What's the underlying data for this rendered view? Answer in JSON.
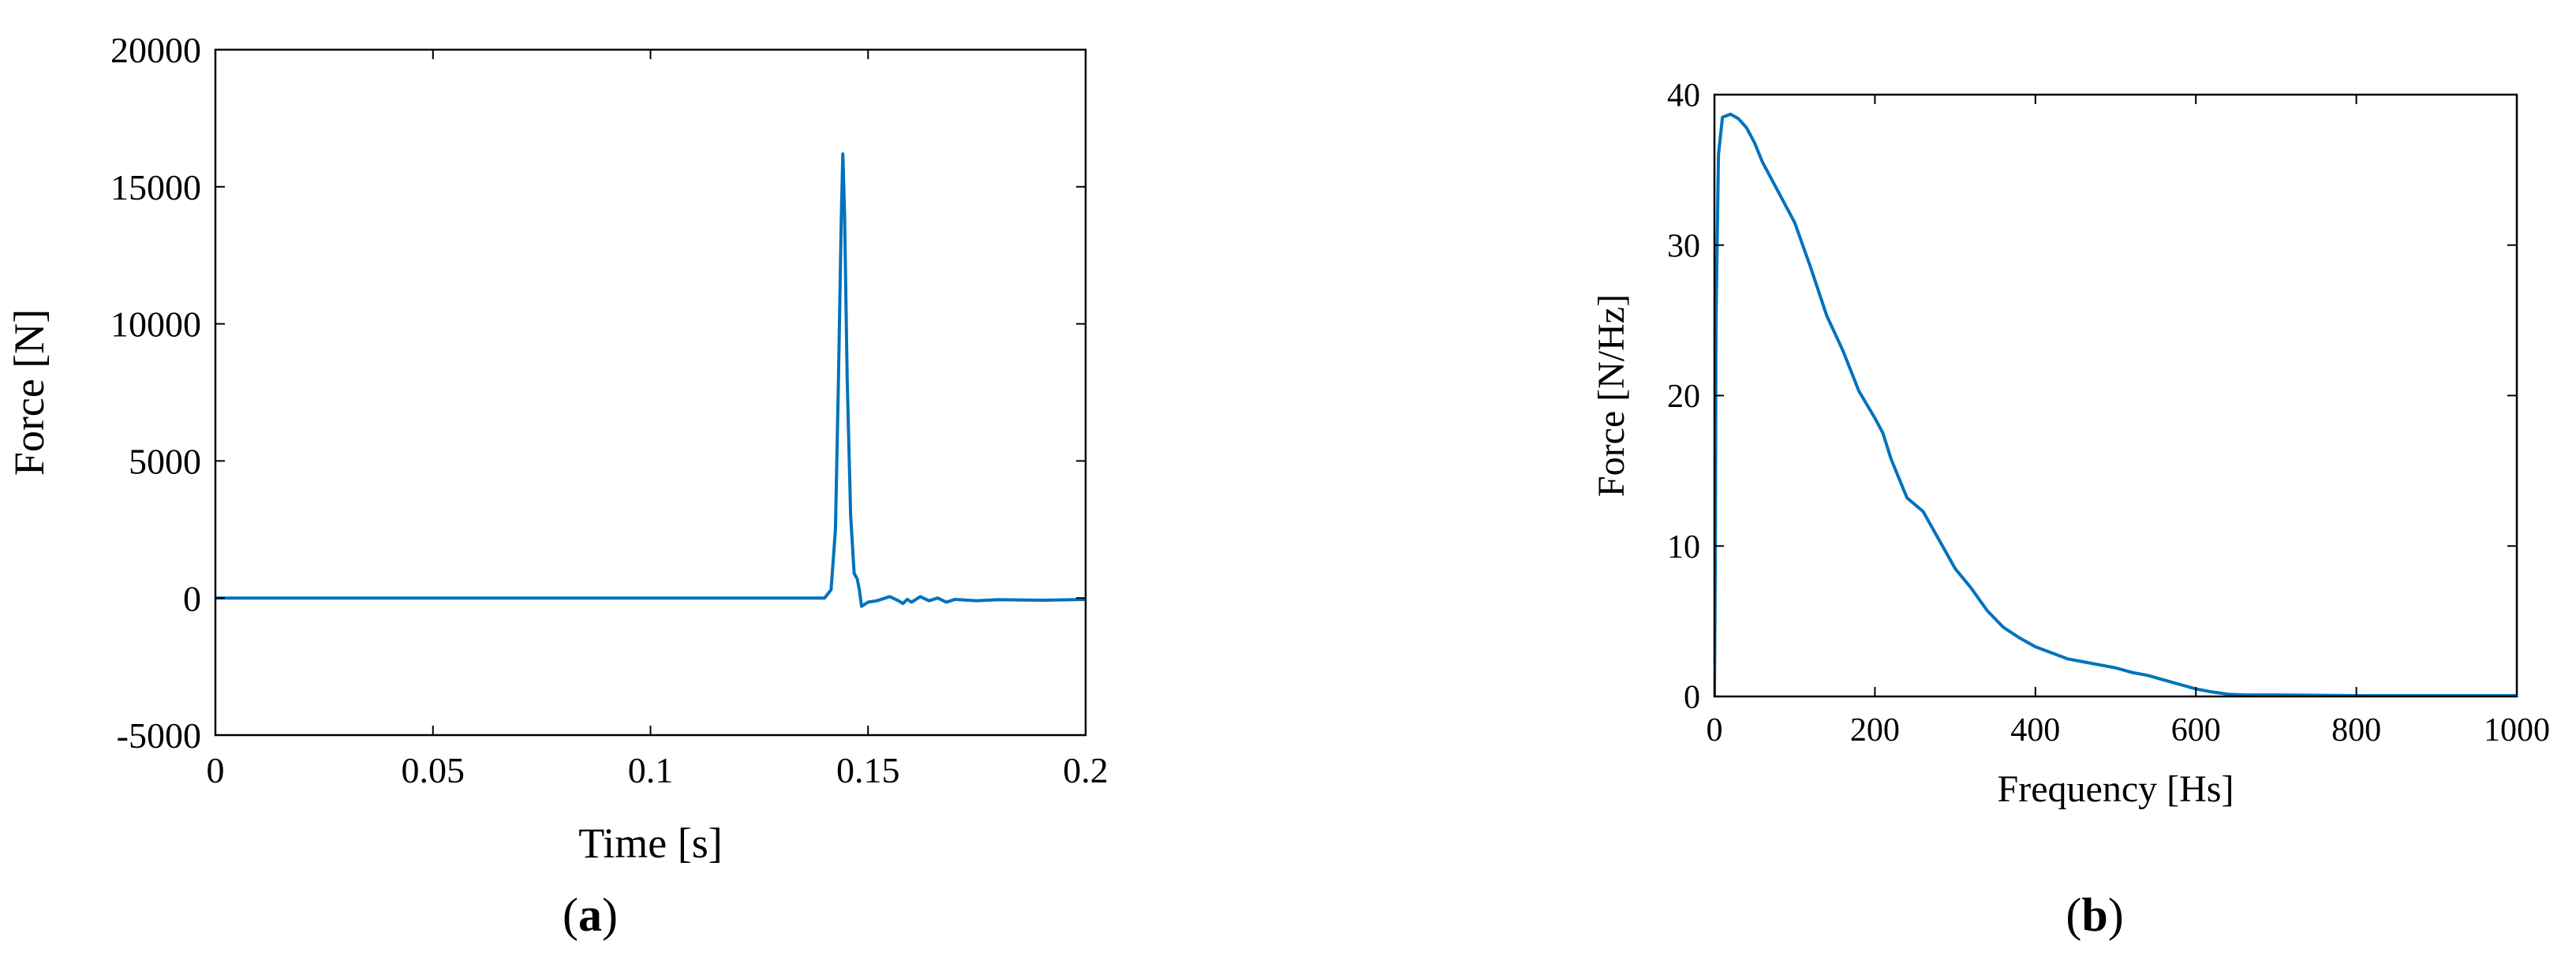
{
  "chart_data": [
    {
      "type": "line",
      "panel_label": "(a)",
      "panel_letter": "a",
      "title": "",
      "xlabel": "Time [s]",
      "ylabel": "Force [N]",
      "xlim": [
        0,
        0.2
      ],
      "ylim": [
        -5000,
        20000
      ],
      "xticks": [
        0,
        0.05,
        0.1,
        0.15,
        0.2
      ],
      "xtick_labels": [
        "0",
        "0.05",
        "0.1",
        "0.15",
        "0.2"
      ],
      "yticks": [
        -5000,
        0,
        5000,
        10000,
        15000,
        20000
      ],
      "ytick_labels": [
        "-5000",
        "0",
        "5000",
        "10000",
        "15000",
        "20000"
      ],
      "grid": false,
      "series": [
        {
          "color": "#0072BD",
          "x": [
            0,
            0.05,
            0.1,
            0.14,
            0.1415,
            0.1425,
            0.1432,
            0.1438,
            0.1442,
            0.1446,
            0.1452,
            0.146,
            0.1468,
            0.1475,
            0.148,
            0.1485,
            0.149,
            0.15,
            0.152,
            0.155,
            0.157,
            0.158,
            0.159,
            0.16,
            0.162,
            0.164,
            0.166,
            0.168,
            0.17,
            0.175,
            0.18,
            0.19,
            0.2
          ],
          "y": [
            0,
            0,
            0,
            0,
            300,
            2500,
            8000,
            13500,
            16200,
            14000,
            8000,
            3000,
            900,
            700,
            300,
            -300,
            -250,
            -150,
            -100,
            50,
            -100,
            -200,
            -50,
            -150,
            50,
            -100,
            0,
            -150,
            -50,
            -100,
            -60,
            -80,
            -50
          ]
        }
      ]
    },
    {
      "type": "line",
      "panel_label": "(b)",
      "panel_letter": "b",
      "title": "",
      "xlabel": "Frequency [Hs]",
      "ylabel": "Force [N/Hz]",
      "xlim": [
        0,
        1000
      ],
      "ylim": [
        0,
        40
      ],
      "xticks": [
        0,
        200,
        400,
        600,
        800,
        1000
      ],
      "xtick_labels": [
        "0",
        "200",
        "400",
        "600",
        "800",
        "1000"
      ],
      "yticks": [
        0,
        10,
        20,
        30,
        40
      ],
      "ytick_labels": [
        "0",
        "10",
        "20",
        "30",
        "40"
      ],
      "grid": false,
      "series": [
        {
          "color": "#0072BD",
          "x": [
            0,
            1,
            2,
            5,
            10,
            20,
            30,
            40,
            50,
            60,
            80,
            100,
            120,
            140,
            160,
            180,
            200,
            210,
            220,
            240,
            260,
            280,
            300,
            320,
            340,
            360,
            380,
            400,
            420,
            440,
            460,
            480,
            500,
            520,
            540,
            560,
            580,
            600,
            620,
            640,
            660,
            680,
            700,
            750,
            800,
            850,
            900,
            950,
            1000
          ],
          "y": [
            0,
            8,
            25,
            36,
            38.5,
            38.7,
            38.4,
            37.8,
            36.8,
            35.5,
            33.5,
            31.5,
            28.5,
            25.3,
            23,
            20.3,
            18.5,
            17.5,
            15.8,
            13.2,
            12.3,
            10.4,
            8.5,
            7.2,
            5.7,
            4.6,
            3.9,
            3.3,
            2.9,
            2.5,
            2.3,
            2.1,
            1.9,
            1.6,
            1.4,
            1.1,
            0.8,
            0.5,
            0.3,
            0.15,
            0.1,
            0.1,
            0.1,
            0.08,
            0.05,
            0.05,
            0.05,
            0.05,
            0.05
          ]
        }
      ]
    }
  ]
}
